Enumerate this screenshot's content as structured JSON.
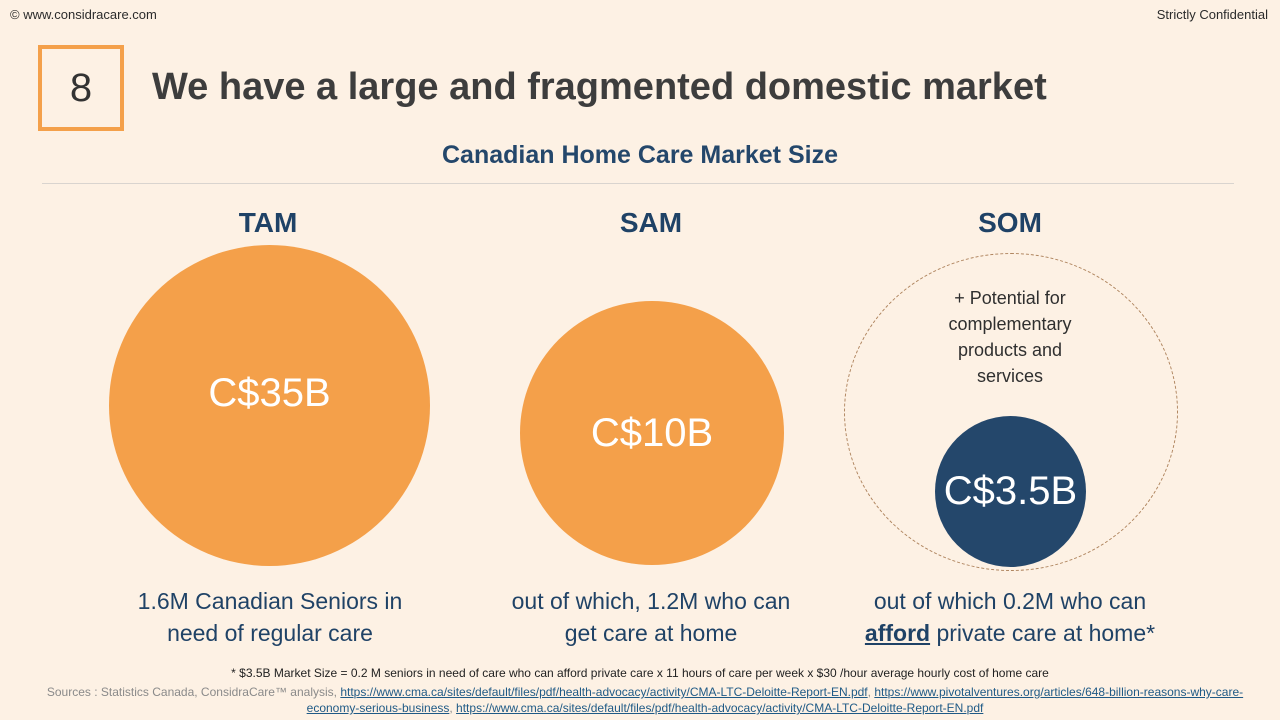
{
  "header": {
    "copyright": "© www.considracare.com",
    "confidential": "Strictly Confidential"
  },
  "slide": {
    "number": "8",
    "title": "We have a large and fragmented domestic market",
    "subtitle": "Canadian Home Care Market Size"
  },
  "tam": {
    "label": "TAM",
    "value": "C$35B",
    "desc_line1": "1.6M Canadian Seniors in",
    "desc_line2": "need of regular care"
  },
  "sam": {
    "label": "SAM",
    "value": "C$10B",
    "desc_line1": "out of which, 1.2M who can",
    "desc_line2": "get care at home"
  },
  "som": {
    "label": "SOM",
    "value": "C$3.5B",
    "potential_line1": "+ Potential for",
    "potential_line2": "complementary",
    "potential_line3": "products and",
    "potential_line4": "services",
    "desc_line1": "out of which 0.2M who can",
    "desc_bold": "afford",
    "desc_line2_rest": " private care at home*"
  },
  "footnote": "* $3.5B Market Size = 0.2 M seniors in need of care who can afford private care x 11 hours of care per week x $30 /hour average hourly cost of home care",
  "sources": {
    "prefix": "Sources :  Statistics Canada, ConsidraCare™ analysis, ",
    "link1": "https://www.cma.ca/sites/default/files/pdf/health-advocacy/activity/CMA-LTC-Deloitte-Report-EN.pdf",
    "sep1": ", ",
    "link2": "https://www.pivotalventures.org/articles/648-billion-reasons-why-care-economy-serious-business",
    "sep2": ", ",
    "link3": "https://www.cma.ca/sites/default/files/pdf/health-advocacy/activity/CMA-LTC-Deloitte-Report-EN.pdf"
  },
  "colors": {
    "background": "#fdf1e4",
    "orange": "#f4a04a",
    "navy": "#24476b"
  }
}
